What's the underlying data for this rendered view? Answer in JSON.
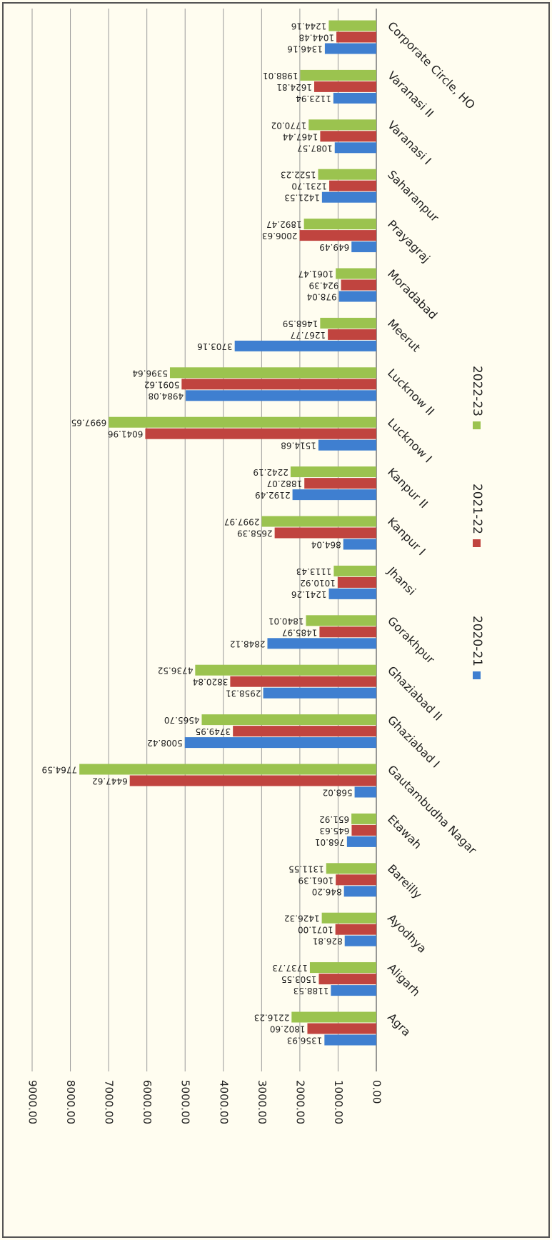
{
  "chart_data": {
    "type": "bar",
    "orientation": "horizontal",
    "categories": [
      "Agra",
      "Aligarh",
      "Ayodhya",
      "Bareilly",
      "Etawah",
      "Gautambudha Nagar",
      "Ghaziabad I",
      "Ghaziabad II",
      "Gorakhpur",
      "Jhansi",
      "Kanpur I",
      "Kanpur II",
      "Lucknow I",
      "Lucknow II",
      "Meerut",
      "Moradabad",
      "Prayagraj",
      "Saharanpur",
      "Varanasi I",
      "Varanasi II",
      "Corporate Circle, HO"
    ],
    "series": [
      {
        "name": "2020-21",
        "color": "#3f7fd0",
        "values": [
          1356.93,
          1188.53,
          826.81,
          846.2,
          768.01,
          568.02,
          5008.42,
          2958.31,
          2848.12,
          1241.26,
          864.04,
          2192.49,
          1514.68,
          4984.08,
          3703.16,
          978.04,
          649.49,
          1421.53,
          1087.57,
          1123.94,
          1346.16
        ],
        "value_labels": [
          "1356.93",
          "1188.53",
          "826.81",
          "846.20",
          "768.01",
          "568.02",
          "5008.42",
          "2958.31",
          "2848.12",
          "1241.26",
          "864.04",
          "2192.49",
          "1514.68",
          "4984.08",
          "3703.16",
          "978.04",
          "649.49",
          "1421.53",
          "1087.57",
          "1123.94",
          "1346.16"
        ]
      },
      {
        "name": "2021-22",
        "color": "#c0443f",
        "values": [
          1802.6,
          1503.55,
          1071.0,
          1061.39,
          645.63,
          6447.62,
          3749.95,
          3820.84,
          1485.97,
          1010.92,
          2658.39,
          1882.07,
          6041.96,
          5091.62,
          1267.77,
          924.39,
          2006.63,
          1231.7,
          1467.44,
          1624.81,
          1044.48
        ],
        "value_labels": [
          "1802.60",
          "1503.55",
          "1071.00",
          "1061.39",
          "645.63",
          "6447.62",
          "3749.95",
          "3820.84",
          "1485.97",
          "1010.92",
          "2658.39",
          "1882.07",
          "6041.96",
          "5091.62",
          "1267.77",
          "924.39",
          "2006.63",
          "1231.70",
          "1467.44",
          "1624.81",
          "1044.48"
        ]
      },
      {
        "name": "2022-23",
        "color": "#9bc34f",
        "values": [
          2216.23,
          1737.73,
          1426.32,
          1311.55,
          651.92,
          7764.59,
          4565.7,
          4736.52,
          1840.01,
          1113.43,
          2997.97,
          2242.19,
          6997.65,
          5396.64,
          1468.59,
          1061.47,
          1892.47,
          1522.23,
          1770.02,
          1988.01,
          1244.16
        ],
        "value_labels": [
          "2216.23",
          "1737.73",
          "1426.32",
          "1311.55",
          "651.92",
          "7764.59",
          "4565.70",
          "4736.52",
          "1840.01",
          "1113.43",
          "2997.97",
          "2242.19",
          "6997.65",
          "5396.64",
          "1468.59",
          "1061.47",
          "1892.47",
          "1522.23",
          "1770.02",
          "1988.01",
          "1244.16"
        ]
      }
    ],
    "ylim": [
      0,
      9000
    ],
    "yticks": [
      {
        "value": 0,
        "label": "0.00"
      },
      {
        "value": 1000,
        "label": "1000.00"
      },
      {
        "value": 2000,
        "label": "2000.00"
      },
      {
        "value": 3000,
        "label": "3000.00"
      },
      {
        "value": 4000,
        "label": "4000.00"
      },
      {
        "value": 5000,
        "label": "5000.00"
      },
      {
        "value": 6000,
        "label": "6000.00"
      },
      {
        "value": 7000,
        "label": "7000.00"
      },
      {
        "value": 8000,
        "label": "8000.00"
      },
      {
        "value": 9000,
        "label": "9000.00"
      }
    ],
    "grid": true,
    "legend": "right"
  }
}
